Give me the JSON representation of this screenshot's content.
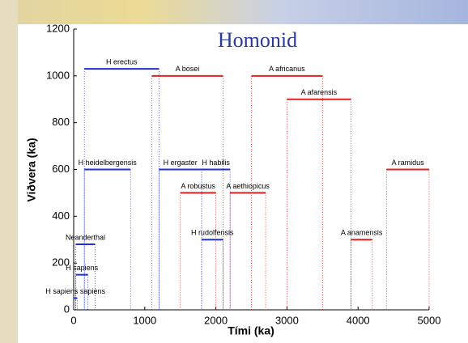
{
  "chart_data": {
    "type": "segment",
    "title": "Homonid",
    "xlabel": "Tími (ka)",
    "ylabel": "Viðvera (ka)",
    "xlim": [
      0,
      5000
    ],
    "ylim": [
      0,
      1200
    ],
    "xticks": [
      0,
      1000,
      2000,
      3000,
      4000,
      5000
    ],
    "yticks": [
      0,
      200,
      400,
      600,
      800,
      1000,
      1200
    ],
    "series": [
      {
        "name": "H erectus",
        "color": "#1f2fd8",
        "start": 150,
        "end": 1200,
        "value": 1030
      },
      {
        "name": "A bosei",
        "color": "#e02020",
        "start": 1100,
        "end": 2100,
        "value": 1000
      },
      {
        "name": "A africanus",
        "color": "#e02020",
        "start": 2500,
        "end": 3500,
        "value": 1000
      },
      {
        "name": "A afarensis",
        "color": "#e02020",
        "start": 3000,
        "end": 3900,
        "value": 900
      },
      {
        "name": "H heidelbergensis",
        "color": "#1f2fd8",
        "start": 150,
        "end": 800,
        "value": 600
      },
      {
        "name": "H ergaster",
        "color": "#1f2fd8",
        "start": 1200,
        "end": 1800,
        "value": 600
      },
      {
        "name": "H habilis",
        "color": "#1f2fd8",
        "start": 1800,
        "end": 2200,
        "value": 600
      },
      {
        "name": "A robustus",
        "color": "#e02020",
        "start": 1500,
        "end": 2000,
        "value": 500
      },
      {
        "name": "A aethiopicus",
        "color": "#e02020",
        "start": 2200,
        "end": 2700,
        "value": 500
      },
      {
        "name": "A ramidus",
        "color": "#e02020",
        "start": 4400,
        "end": 5000,
        "value": 600
      },
      {
        "name": "H rudolfensis",
        "color": "#1f2fd8",
        "start": 1800,
        "end": 2100,
        "value": 300
      },
      {
        "name": "A anamensis",
        "color": "#e02020",
        "start": 3900,
        "end": 4200,
        "value": 300
      },
      {
        "name": "Neanderthal",
        "color": "#1f2fd8",
        "start": 30,
        "end": 300,
        "value": 280
      },
      {
        "name": "H sapiens",
        "color": "#1f2fd8",
        "start": 30,
        "end": 200,
        "value": 150
      },
      {
        "name": "H sapiens sapiens",
        "color": "#1f2fd8",
        "start": 0,
        "end": 50,
        "value": 50
      }
    ]
  }
}
